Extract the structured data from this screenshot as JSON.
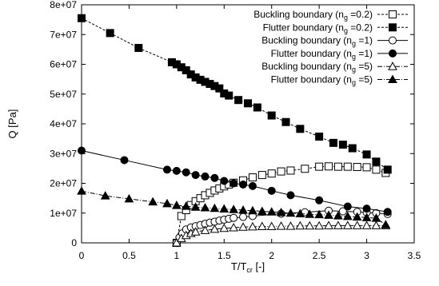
{
  "chart_data": {
    "type": "line",
    "xlabel": {
      "main": "T/T",
      "sub": "cr",
      "tail": " [-]"
    },
    "ylabel": "Q [Pa]",
    "xlim": [
      0,
      3.5
    ],
    "ylim": [
      0,
      80000000
    ],
    "xticks": [
      0,
      0.5,
      1,
      1.5,
      2,
      2.5,
      3,
      3.5
    ],
    "xtick_labels": [
      "0",
      "0.5",
      "1",
      "1.5",
      "2",
      "2.5",
      "3",
      "3.5"
    ],
    "yticks": [
      0,
      10000000,
      20000000,
      30000000,
      40000000,
      50000000,
      60000000,
      70000000,
      80000000
    ],
    "ytick_labels": [
      "0",
      "1e+07",
      "2e+07",
      "3e+07",
      "4e+07",
      "5e+07",
      "6e+07",
      "7e+07",
      "8e+07"
    ],
    "grid": false,
    "legend_position": "top-right",
    "series": [
      {
        "legend": {
          "main": "Buckling boundary (n",
          "sub": "g",
          "tail": " =0.2)"
        },
        "marker": "square-open",
        "dash": "3,2",
        "x": [
          1.0,
          1.05,
          1.1,
          1.15,
          1.2,
          1.25,
          1.3,
          1.35,
          1.4,
          1.45,
          1.5,
          1.55,
          1.6,
          1.7,
          1.8,
          1.9,
          2.0,
          2.1,
          2.2,
          2.35,
          2.5,
          2.6,
          2.7,
          2.8,
          2.9,
          3.0,
          3.1,
          3.2
        ],
        "y": [
          0,
          9000000,
          11000000,
          12700000,
          14000000,
          15000000,
          16000000,
          16800000,
          17600000,
          18300000,
          19000000,
          19600000,
          20200000,
          21000000,
          22000000,
          22800000,
          23300000,
          24000000,
          24300000,
          24900000,
          25600000,
          25700000,
          25600000,
          25600000,
          25500000,
          25400000,
          24600000,
          23500000
        ]
      },
      {
        "legend": {
          "main": "Flutter boundary (n",
          "sub": "g",
          "tail": " =0.2)"
        },
        "marker": "square-filled",
        "dash": "3,2",
        "x": [
          0,
          0.3,
          0.6,
          0.95,
          1.0,
          1.05,
          1.1,
          1.15,
          1.2,
          1.25,
          1.3,
          1.35,
          1.4,
          1.45,
          1.5,
          1.55,
          1.65,
          1.75,
          1.85,
          2.0,
          2.15,
          2.3,
          2.5,
          2.65,
          2.75,
          2.85,
          3.0,
          3.1,
          3.22
        ],
        "y": [
          75500000,
          70500000,
          65500000,
          60700000,
          60000000,
          59000000,
          58000000,
          56600000,
          55600000,
          54800000,
          54100000,
          53400000,
          52700000,
          51900000,
          50200000,
          49500000,
          48000000,
          46900000,
          45500000,
          42800000,
          40600000,
          38300000,
          35700000,
          33600000,
          33000000,
          31800000,
          29700000,
          27300000,
          24600000
        ]
      },
      {
        "legend": {
          "main": "Buckling boundary (n",
          "sub": "g",
          "tail": " =1)"
        },
        "marker": "circle-open",
        "dash": "",
        "x": [
          1.0,
          1.03,
          1.06,
          1.1,
          1.15,
          1.2,
          1.25,
          1.3,
          1.35,
          1.4,
          1.45,
          1.5,
          1.55,
          1.6,
          1.7,
          1.8,
          2.1,
          2.35,
          2.6,
          2.75,
          2.9,
          3.0,
          3.1,
          3.22
        ],
        "y": [
          0,
          1800000,
          3200000,
          4500000,
          5200000,
          5600000,
          6000000,
          6400000,
          6800000,
          7100000,
          7500000,
          7800000,
          8100000,
          8400000,
          8700000,
          9000000,
          9800000,
          10300000,
          10800000,
          10600000,
          10400000,
          10200000,
          10000000,
          9700000
        ]
      },
      {
        "legend": {
          "main": "Flutter boundary (n",
          "sub": "g",
          "tail": " =1)"
        },
        "marker": "circle-filled",
        "dash": "",
        "x": [
          0,
          0.45,
          0.9,
          1.0,
          1.1,
          1.2,
          1.3,
          1.4,
          1.5,
          1.6,
          1.7,
          1.8,
          2.0,
          2.2,
          2.5,
          2.8,
          3.0,
          3.22
        ],
        "y": [
          31000000,
          27800000,
          24600000,
          24200000,
          23700000,
          22800000,
          22300000,
          21800000,
          20800000,
          20000000,
          19600000,
          19100000,
          17500000,
          16000000,
          14300000,
          12200000,
          11500000,
          10400000
        ]
      },
      {
        "legend": {
          "main": "Buckling boundary (n",
          "sub": "g",
          "tail": " =5)"
        },
        "marker": "triangle-open",
        "dash": "6,2,1,2",
        "x": [
          1.0,
          1.05,
          1.1,
          1.15,
          1.2,
          1.3,
          1.4,
          1.5,
          1.6,
          1.7,
          1.8,
          1.9,
          2.0,
          2.1,
          2.2,
          2.3,
          2.4,
          2.5,
          2.6,
          2.7,
          2.8,
          2.9,
          3.0,
          3.1,
          3.2
        ],
        "y": [
          0,
          1500000,
          2500000,
          3200000,
          3700000,
          4200000,
          4600000,
          4900000,
          5100000,
          5300000,
          5400000,
          5500000,
          5500000,
          5600000,
          5600000,
          5700000,
          5700000,
          5700000,
          5800000,
          5800000,
          5800000,
          5800000,
          5800000,
          5800000,
          5800000
        ]
      },
      {
        "legend": {
          "main": "Flutter boundary (n",
          "sub": "g",
          "tail": " =5)"
        },
        "marker": "triangle-filled",
        "dash": "6,2,1,2",
        "x": [
          0,
          0.25,
          0.5,
          0.75,
          0.9,
          1.0,
          1.1,
          1.2,
          1.3,
          1.4,
          1.5,
          1.6,
          1.7,
          1.8,
          1.9,
          2.0,
          2.1,
          2.2,
          2.3,
          2.4,
          2.5,
          2.6,
          2.7,
          2.8,
          2.9,
          3.0,
          3.1,
          3.2
        ],
        "y": [
          17400000,
          15800000,
          14800000,
          13800000,
          13200000,
          12600000,
          12300000,
          12000000,
          11800000,
          11600000,
          11400000,
          11200000,
          11000000,
          10800000,
          10600000,
          10400000,
          10200000,
          10000000,
          9800000,
          9600000,
          9500000,
          9300000,
          9100000,
          8900000,
          8700000,
          8500000,
          8300000,
          6100000
        ]
      }
    ]
  }
}
